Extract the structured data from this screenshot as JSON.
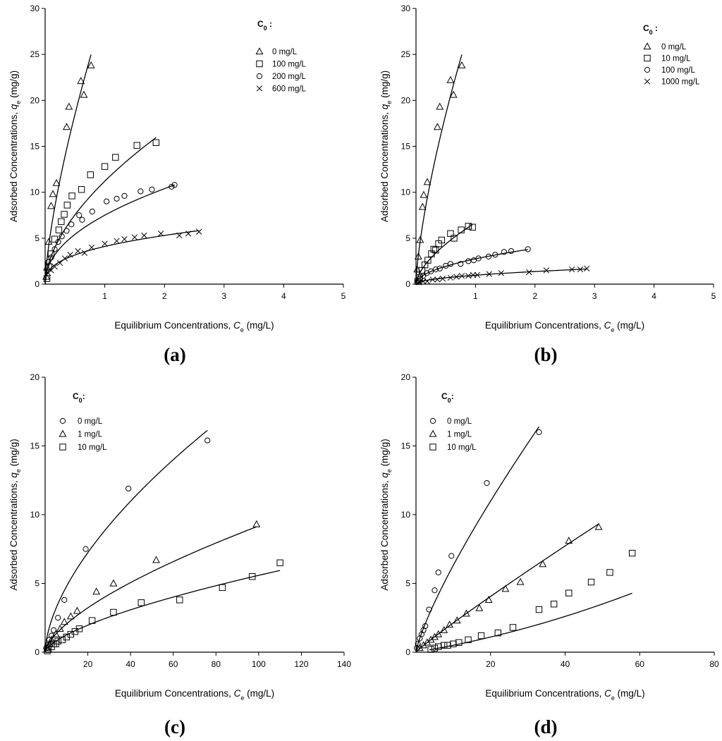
{
  "chart_data": [
    {
      "id": "a",
      "type": "scatter",
      "panel_label": "(a)",
      "xlabel_prefix": "Equilibrium Concentrations, ",
      "xlabel_var": "C",
      "xlabel_sub": "e",
      "xlabel_suffix": " (mg/L)",
      "ylabel_prefix": "Adsorbed Concentrations, ",
      "ylabel_var": "q",
      "ylabel_sub": "e",
      "ylabel_suffix": " (mg/g)",
      "xlim": [
        0,
        5
      ],
      "ylim": [
        0,
        30
      ],
      "xticks": [
        1,
        2,
        3,
        4,
        5
      ],
      "yticks": [
        0,
        5,
        10,
        15,
        20,
        25,
        30
      ],
      "legend_title_main": "C",
      "legend_title_sub": "0",
      "legend_title_suffix": " :",
      "legend_position": "top-right",
      "series": [
        {
          "name": "0 mg/L",
          "marker": "triangle",
          "fit": {
            "K": 30.0,
            "n": 0.7
          },
          "x": [
            0.02,
            0.03,
            0.06,
            0.1,
            0.13,
            0.19,
            0.36,
            0.4,
            0.6,
            0.65,
            0.77
          ],
          "y": [
            0.8,
            1.8,
            4.6,
            8.5,
            9.8,
            11.0,
            17.1,
            19.3,
            22.1,
            20.6,
            23.8
          ]
        },
        {
          "name": "100 mg/L",
          "marker": "square",
          "fit": {
            "K": 11.2,
            "n": 0.57
          },
          "x": [
            0.03,
            0.06,
            0.1,
            0.16,
            0.23,
            0.27,
            0.32,
            0.37,
            0.45,
            0.61,
            0.76,
            1.0,
            1.18,
            1.54,
            1.86
          ],
          "y": [
            0.6,
            1.9,
            3.3,
            4.9,
            5.9,
            6.8,
            7.6,
            8.6,
            9.6,
            10.3,
            11.9,
            12.8,
            13.8,
            15.1,
            15.4
          ]
        },
        {
          "name": "200 mg/L",
          "marker": "circle",
          "fit": {
            "K": 7.5,
            "n": 0.47
          },
          "x": [
            0.05,
            0.1,
            0.16,
            0.22,
            0.28,
            0.36,
            0.44,
            0.57,
            0.62,
            0.79,
            1.03,
            1.2,
            1.33,
            1.6,
            1.79,
            2.12,
            2.17
          ],
          "y": [
            2.4,
            2.9,
            3.8,
            4.6,
            5.2,
            5.8,
            6.5,
            7.5,
            7.0,
            7.9,
            9.0,
            9.3,
            9.6,
            10.1,
            10.3,
            10.6,
            10.8
          ]
        },
        {
          "name": "600 mg/L",
          "marker": "cross",
          "fit": {
            "K": 4.1,
            "n": 0.37
          },
          "x": [
            0.05,
            0.1,
            0.16,
            0.25,
            0.33,
            0.42,
            0.55,
            0.66,
            0.78,
            1.0,
            1.2,
            1.33,
            1.5,
            1.66,
            1.94,
            2.25,
            2.4,
            2.58
          ],
          "y": [
            1.2,
            1.5,
            1.9,
            2.3,
            2.8,
            3.2,
            3.6,
            3.4,
            4.0,
            4.4,
            4.7,
            4.9,
            5.1,
            5.3,
            5.5,
            5.3,
            5.5,
            5.7
          ]
        }
      ]
    },
    {
      "id": "b",
      "type": "scatter",
      "panel_label": "(b)",
      "xlabel_prefix": "Equilibrium Concentrations, ",
      "xlabel_var": "C",
      "xlabel_sub": "e",
      "xlabel_suffix": " (mg/L)",
      "ylabel_prefix": "Adsorbed Concentrations, ",
      "ylabel_var": "q",
      "ylabel_sub": "e",
      "ylabel_suffix": " (mg/g)",
      "xlim": [
        0,
        5
      ],
      "ylim": [
        0,
        30
      ],
      "xticks": [
        1,
        2,
        3,
        4,
        5
      ],
      "yticks": [
        0,
        5,
        10,
        15,
        20,
        25,
        30
      ],
      "legend_title_main": "C",
      "legend_title_sub": "0",
      "legend_title_suffix": " :",
      "legend_position": "top-right",
      "series": [
        {
          "name": "0 mg/L",
          "marker": "triangle",
          "fit": {
            "K": 30.0,
            "n": 0.7
          },
          "x": [
            0.02,
            0.04,
            0.07,
            0.11,
            0.13,
            0.19,
            0.36,
            0.4,
            0.58,
            0.63,
            0.77
          ],
          "y": [
            1.6,
            3.0,
            4.8,
            8.4,
            9.7,
            11.1,
            17.1,
            19.3,
            22.2,
            20.6,
            23.8
          ]
        },
        {
          "name": "10 mg/L",
          "marker": "square",
          "fit": {
            "K": 6.7,
            "n": 0.62
          },
          "x": [
            0.03,
            0.06,
            0.1,
            0.15,
            0.2,
            0.26,
            0.3,
            0.33,
            0.38,
            0.43,
            0.58,
            0.64,
            0.76,
            0.88,
            0.95
          ],
          "y": [
            0.3,
            0.7,
            1.5,
            2.1,
            2.6,
            3.3,
            3.8,
            3.7,
            4.4,
            4.8,
            5.5,
            5.0,
            5.9,
            6.3,
            6.2
          ]
        },
        {
          "name": "100 mg/L",
          "marker": "circle",
          "fit": {
            "K": 2.75,
            "n": 0.5
          },
          "x": [
            0.03,
            0.07,
            0.12,
            0.18,
            0.25,
            0.33,
            0.4,
            0.5,
            0.58,
            0.75,
            0.88,
            0.97,
            1.05,
            1.22,
            1.33,
            1.48,
            1.6,
            1.88
          ],
          "y": [
            0.3,
            0.6,
            0.9,
            1.2,
            1.4,
            1.6,
            1.7,
            2.0,
            2.2,
            2.2,
            2.5,
            2.6,
            2.8,
            3.0,
            3.2,
            3.5,
            3.6,
            3.8
          ]
        },
        {
          "name": "1000 mg/L",
          "marker": "cross",
          "fit": {
            "K": 0.97,
            "n": 0.5
          },
          "x": [
            0.05,
            0.12,
            0.19,
            0.28,
            0.36,
            0.45,
            0.58,
            0.68,
            0.77,
            0.88,
            0.96,
            1.03,
            1.23,
            1.43,
            1.9,
            2.19,
            2.62,
            2.76,
            2.87
          ],
          "y": [
            0.2,
            0.3,
            0.3,
            0.5,
            0.5,
            0.6,
            0.7,
            0.8,
            0.9,
            0.9,
            1.0,
            1.0,
            1.1,
            1.2,
            1.3,
            1.5,
            1.6,
            1.6,
            1.7
          ]
        }
      ]
    },
    {
      "id": "c",
      "type": "scatter",
      "panel_label": "(c)",
      "xlabel_prefix": "Equilibrium Concentrations, ",
      "xlabel_var": "C",
      "xlabel_sub": "e",
      "xlabel_suffix": " (mg/L)",
      "ylabel_prefix": "Adsorbed Concentrations, ",
      "ylabel_var": "q",
      "ylabel_sub": "e",
      "ylabel_suffix": " (mg/g)",
      "xlim": [
        0,
        140
      ],
      "ylim": [
        0,
        20
      ],
      "xticks": [
        20,
        40,
        60,
        80,
        100,
        120,
        140
      ],
      "yticks": [
        0,
        5,
        10,
        15,
        20
      ],
      "legend_title_main": "C",
      "legend_title_sub": "0",
      "legend_title_suffix": ":",
      "legend_position": "top-left",
      "series": [
        {
          "name": "0 mg/L",
          "marker": "circle",
          "fit": {
            "K": 1.2,
            "n": 0.6
          },
          "x": [
            0.5,
            1.0,
            2.0,
            3.0,
            4.0,
            6.0,
            9.0,
            19.0,
            39.0,
            76.0
          ],
          "y": [
            0.3,
            0.5,
            0.9,
            1.2,
            1.6,
            2.5,
            3.8,
            7.5,
            11.9,
            15.4
          ]
        },
        {
          "name": "1 mg/L",
          "marker": "triangle",
          "fit": {
            "K": 0.46,
            "n": 0.65
          },
          "x": [
            1.0,
            2.0,
            3.0,
            5.0,
            7.0,
            9.0,
            12.0,
            15.0,
            24.0,
            32.0,
            52.0,
            99.0
          ],
          "y": [
            0.3,
            0.6,
            0.9,
            1.3,
            1.7,
            2.2,
            2.6,
            3.0,
            4.4,
            5.0,
            6.7,
            9.3
          ]
        },
        {
          "name": "10 mg/L",
          "marker": "square",
          "fit": {
            "K": 0.28,
            "n": 0.65
          },
          "x": [
            1.0,
            1.5,
            3.0,
            4.0,
            5.0,
            6.0,
            8.0,
            10.0,
            12.0,
            14.0,
            16.0,
            22.0,
            32.0,
            45.0,
            63.0,
            83.0,
            97.0,
            110.0
          ],
          "y": [
            0.1,
            0.2,
            0.4,
            0.6,
            0.6,
            0.8,
            0.9,
            1.1,
            1.3,
            1.5,
            1.7,
            2.3,
            2.9,
            3.6,
            3.8,
            4.7,
            5.5,
            6.5
          ]
        }
      ]
    },
    {
      "id": "d",
      "type": "scatter",
      "panel_label": "(d)",
      "xlabel_prefix": "Equilibrium Concentrations, ",
      "xlabel_var": "C",
      "xlabel_sub": "e",
      "xlabel_suffix": " (mg/L)",
      "ylabel_prefix": "Adsorbed Concentrations, ",
      "ylabel_var": "q",
      "ylabel_sub": "e",
      "ylabel_suffix": " (mg/g)",
      "xlim": [
        0,
        80
      ],
      "ylim": [
        0,
        20
      ],
      "xticks": [
        20,
        40,
        60,
        80
      ],
      "yticks": [
        0,
        5,
        10,
        15,
        20
      ],
      "legend_title_main": "C",
      "legend_title_sub": "0",
      "legend_title_suffix": ":",
      "legend_position": "top-left",
      "series": [
        {
          "name": "0 mg/L",
          "marker": "circle",
          "fit": {
            "K": 1.0,
            "n": 0.8
          },
          "x": [
            0.2,
            0.5,
            1.0,
            1.5,
            2.0,
            2.5,
            3.5,
            5.0,
            6.0,
            9.5,
            19.0,
            33.0
          ],
          "y": [
            0.3,
            0.6,
            1.0,
            1.3,
            1.6,
            1.9,
            3.1,
            4.5,
            5.8,
            7.0,
            12.3,
            16.0
          ]
        },
        {
          "name": "1 mg/L",
          "marker": "triangle",
          "fit": {
            "K": 0.25,
            "n": 0.93
          },
          "x": [
            1.0,
            2.0,
            3.0,
            4.0,
            5.0,
            6.0,
            7.5,
            9.0,
            11.0,
            13.5,
            17.0,
            19.5,
            24.0,
            28.0,
            34.0,
            41.0,
            49.0
          ],
          "y": [
            0.3,
            0.5,
            0.7,
            0.9,
            1.1,
            1.3,
            1.6,
            2.0,
            2.3,
            2.8,
            3.2,
            3.8,
            4.6,
            5.1,
            6.4,
            8.1,
            9.1
          ]
        },
        {
          "name": "10 mg/L",
          "marker": "square",
          "fit": {
            "a": 0.045,
            "b": 0.0005
          },
          "x": [
            4.0,
            5.0,
            6.0,
            7.5,
            8.5,
            10.0,
            11.5,
            14.0,
            17.5,
            22.0,
            26.0,
            33.0,
            37.0,
            41.0,
            47.0,
            52.0,
            58.0
          ],
          "y": [
            0.2,
            0.3,
            0.4,
            0.5,
            0.5,
            0.6,
            0.7,
            0.9,
            1.2,
            1.4,
            1.8,
            3.1,
            3.5,
            4.3,
            5.1,
            5.8,
            7.2
          ]
        }
      ]
    }
  ]
}
